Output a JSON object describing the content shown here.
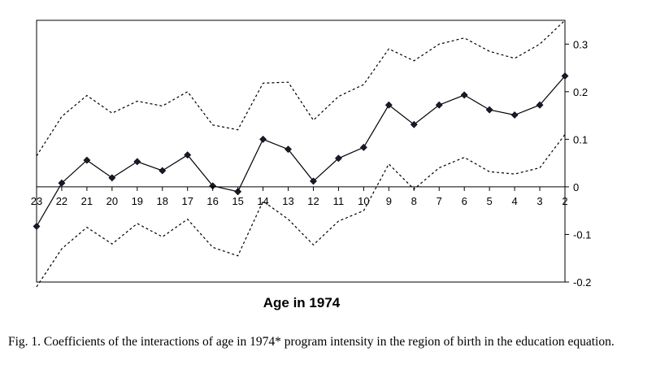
{
  "chart_data": {
    "type": "line",
    "x": [
      "23",
      "22",
      "21",
      "20",
      "19",
      "18",
      "17",
      "16",
      "15",
      "14",
      "13",
      "12",
      "11",
      "10",
      "9",
      "8",
      "7",
      "6",
      "5",
      "4",
      "3",
      "2"
    ],
    "series": [
      {
        "style": "solid-with-diamond-markers",
        "values": [
          -0.083,
          0.008,
          0.056,
          0.019,
          0.053,
          0.034,
          0.067,
          0.002,
          -0.01,
          0.1,
          0.079,
          0.012,
          0.06,
          0.083,
          0.172,
          0.131,
          0.172,
          0.193,
          0.162,
          0.151,
          0.172,
          0.233
        ]
      },
      {
        "style": "dotted-upper-bound",
        "values": [
          0.065,
          0.148,
          0.192,
          0.155,
          0.18,
          0.17,
          0.2,
          0.13,
          0.12,
          0.218,
          0.22,
          0.14,
          0.19,
          0.215,
          0.29,
          0.265,
          0.3,
          0.313,
          0.285,
          0.27,
          0.3,
          0.35
        ]
      },
      {
        "style": "dotted-lower-bound",
        "values": [
          -0.21,
          -0.13,
          -0.085,
          -0.12,
          -0.077,
          -0.105,
          -0.068,
          -0.127,
          -0.145,
          -0.03,
          -0.068,
          -0.122,
          -0.072,
          -0.05,
          0.048,
          -0.005,
          0.04,
          0.062,
          0.032,
          0.027,
          0.04,
          0.11
        ]
      }
    ],
    "y_ticks": [
      "0.3",
      "0.2",
      "0.1",
      "0",
      "-0.1",
      "-0.2"
    ],
    "ylim": [
      -0.2,
      0.35
    ],
    "y_axis_position": "right",
    "xlabel": "Age in 1974",
    "grid": false,
    "legend": "none"
  },
  "caption": "Fig. 1. Coefficients of the interactions of age in 1974* program intensity in the region of birth in the education equation."
}
